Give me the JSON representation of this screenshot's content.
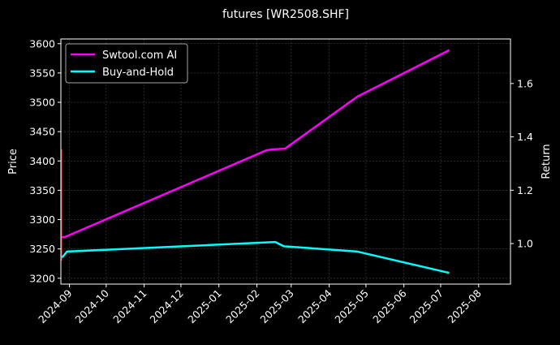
{
  "chart_data": {
    "type": "line",
    "title": "futures [WR2508.SHF]",
    "ylabel": "Price",
    "y2label": "Return",
    "xlim": [
      "2024-08-25",
      "2025-08-27"
    ],
    "ylim": [
      3190,
      3608
    ],
    "y2lim": [
      0.848,
      1.767
    ],
    "yticks": [
      3200,
      3250,
      3300,
      3350,
      3400,
      3450,
      3500,
      3550,
      3600
    ],
    "y2ticks": [
      1.0,
      1.2,
      1.4,
      1.6
    ],
    "xticks": [
      "2024-09",
      "2024-10",
      "2024-11",
      "2024-12",
      "2025-01",
      "2025-02",
      "2025-03",
      "2025-04",
      "2025-05",
      "2025-06",
      "2025-07",
      "2025-08"
    ],
    "grid": true,
    "legend_position": "top-left",
    "series": [
      {
        "name": "Swtool.com AI",
        "axis": "right",
        "color": "#ff00ff",
        "x": [
          "2024-08-26",
          "2024-08-28",
          "2025-02-09",
          "2025-02-14",
          "2025-02-24",
          "2025-04-24",
          "2025-07-08"
        ],
        "y": [
          1.024,
          1.024,
          1.35,
          1.353,
          1.356,
          1.551,
          1.725
        ]
      },
      {
        "name": "Buy-and-Hold",
        "axis": "right",
        "color": "#00ffff",
        "x": [
          "2024-08-26",
          "2024-08-30",
          "2025-02-16",
          "2025-02-23",
          "2025-04-24",
          "2025-07-08"
        ],
        "y": [
          0.948,
          0.97,
          1.006,
          0.99,
          0.97,
          0.89
        ]
      }
    ]
  }
}
